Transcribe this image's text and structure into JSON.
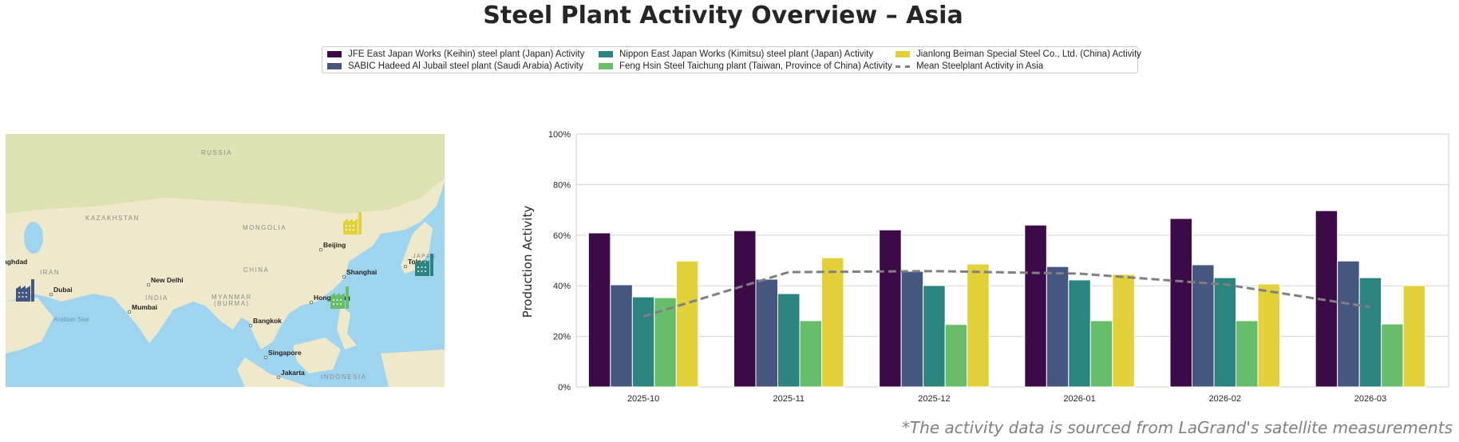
{
  "title": "Steel Plant Activity Overview – Asia",
  "footnote": "*The activity data is sourced from LaGrand's satellite measurements",
  "map": {
    "labels": {
      "russia": "RUSSIA",
      "kazakhstan": "KAZAKHSTAN",
      "mongolia": "MONGOLIA",
      "china": "CHINA",
      "iran": "IRAN",
      "india": "INDIA",
      "myanmar": "MYANMAR",
      "burma": "(BURMA)",
      "indonesia": "INDONESIA",
      "arabian_sea": "Arabian Sea",
      "japan": "JAPAN"
    },
    "cities": [
      "Beijing",
      "Shanghai",
      "Hong Kong",
      "New Delhi",
      "Dubai",
      "Mumbai",
      "Bangkok",
      "Singapore",
      "Jakarta",
      "Tokyo",
      "Baghdad"
    ],
    "markers": [
      {
        "plant": "Jianlong Beiman Special Steel Co., Ltd. (China)",
        "icon": "factory-icon",
        "color": "#e2d13b"
      },
      {
        "plant": "JFE / Nippon East Japan Works (Japan)",
        "icon": "factory-icon",
        "color": "#2c8480"
      },
      {
        "plant": "Feng Hsin Steel Taichung plant (Taiwan)",
        "icon": "factory-icon",
        "color": "#68bd6a"
      },
      {
        "plant": "SABIC Hadeed Al Jubail steel plant (Saudi Arabia)",
        "icon": "factory-icon",
        "color": "#45577f"
      }
    ]
  },
  "chart_data": {
    "type": "bar",
    "title": "Steel Plant Activity Overview – Asia",
    "xlabel": "",
    "ylabel": "Production Activity",
    "ylim": [
      0,
      100
    ],
    "yticks": [
      "0%",
      "20%",
      "40%",
      "60%",
      "80%",
      "100%"
    ],
    "grid": true,
    "legend_position": "top-center",
    "categories": [
      "2025-10",
      "2025-11",
      "2025-12",
      "2026-01",
      "2026-02",
      "2026-03"
    ],
    "series": [
      {
        "name": "JFE East Japan Works (Keihin) steel plant (Japan) Activity",
        "color": "#3c0a47",
        "values": [
          60.9,
          61.8,
          62.1,
          64.0,
          66.6,
          69.7
        ]
      },
      {
        "name": "SABIC Hadeed Al Jubail steel plant (Saudi Arabia) Activity",
        "color": "#45577f",
        "values": [
          40.4,
          42.6,
          45.7,
          47.6,
          48.3,
          49.8
        ]
      },
      {
        "name": "Nippon East Japan Works (Kimitsu) steel plant (Japan) Activity",
        "color": "#2c8480",
        "values": [
          35.6,
          36.9,
          40.1,
          42.3,
          43.2,
          43.2
        ]
      },
      {
        "name": "Feng Hsin Steel Taichung plant (Taiwan, Province of China) Activity",
        "color": "#68bd6a",
        "values": [
          35.3,
          26.2,
          24.7,
          26.2,
          26.2,
          24.9
        ]
      },
      {
        "name": "Jianlong Beiman Special Steel Co., Ltd. (China) Activity",
        "color": "#e2d13b",
        "values": [
          49.8,
          51.1,
          48.6,
          44.5,
          40.7,
          40.1
        ]
      }
    ],
    "mean_line": {
      "name": "Mean Steelplant Activity in Asia",
      "color": "#808080",
      "style": "dashed",
      "values": [
        27.9,
        45.4,
        45.8,
        44.8,
        40.5,
        31.6
      ]
    }
  }
}
